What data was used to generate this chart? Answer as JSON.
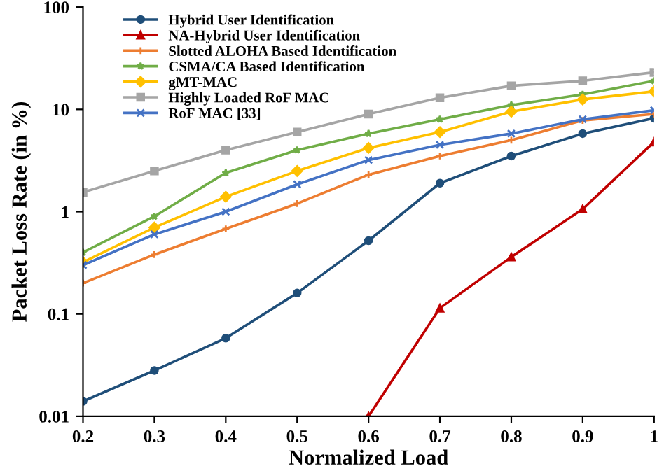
{
  "chart_data": {
    "type": "line",
    "xlabel": "Normalized Load",
    "ylabel": "Packet Loss Rate (in %)",
    "x": [
      0.2,
      0.3,
      0.4,
      0.5,
      0.6,
      0.7,
      0.8,
      0.9,
      1
    ],
    "series": [
      {
        "name": "Hybrid User Identification",
        "color": "#1f4e79",
        "marker": "circle",
        "values": [
          0.014,
          0.028,
          0.058,
          0.16,
          0.52,
          1.9,
          3.5,
          5.8,
          8.2
        ]
      },
      {
        "name": "NA-Hybrid User Identification",
        "color": "#c00000",
        "marker": "triangle",
        "values": [
          null,
          null,
          null,
          null,
          0.01,
          0.114,
          0.36,
          1.06,
          4.8
        ]
      },
      {
        "name": "Slotted ALOHA Based Identification",
        "color": "#ed7d31",
        "marker": "plus",
        "values": [
          0.2,
          0.38,
          0.68,
          1.2,
          2.3,
          3.5,
          5.0,
          7.8,
          9.0
        ]
      },
      {
        "name": "CSMA/CA Based Identification",
        "color": "#70ad47",
        "marker": "star",
        "values": [
          0.4,
          0.9,
          2.4,
          4.0,
          5.8,
          8.0,
          11,
          14,
          19
        ]
      },
      {
        "name": "gMT-MAC",
        "color": "#ffc000",
        "marker": "diamond",
        "values": [
          0.32,
          0.7,
          1.4,
          2.5,
          4.2,
          6.0,
          9.5,
          12.5,
          15
        ]
      },
      {
        "name": "Highly Loaded RoF MAC",
        "color": "#a5a5a5",
        "marker": "square",
        "values": [
          1.55,
          2.5,
          4.0,
          6.0,
          9.0,
          13,
          17,
          19,
          23
        ]
      },
      {
        "name": "RoF MAC [33]",
        "color": "#4472c4",
        "marker": "cross",
        "values": [
          0.3,
          0.6,
          1.0,
          1.85,
          3.2,
          4.5,
          5.8,
          8.0,
          9.8
        ]
      }
    ],
    "log": "y",
    "xlim": [
      0.2,
      1
    ],
    "xticks": [
      0.2,
      0.3,
      0.4,
      0.5,
      0.6,
      0.7,
      0.8,
      0.9,
      1
    ],
    "ylim": [
      0.01,
      100
    ],
    "yticks": [
      0.01,
      0.1,
      1,
      10,
      100
    ],
    "grid": false,
    "legend": "top left",
    "line_style": "solid"
  }
}
